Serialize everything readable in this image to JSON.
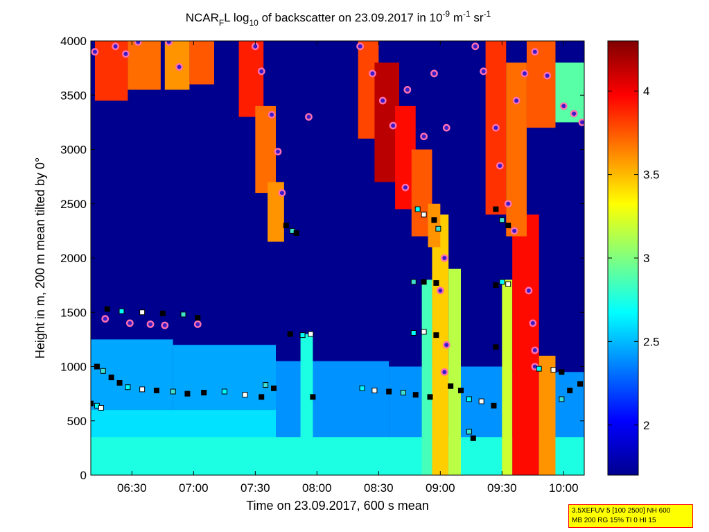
{
  "chart_data": {
    "type": "heatmap",
    "title": {
      "prefix": "NCAR",
      "sub1": "F",
      "mid1": "L log",
      "sub2": "10",
      "mid2": " of backscatter on 23.09.2017 in 10",
      "sup1": "-9",
      "mid3": " m",
      "sup2": "-1",
      "mid4": " sr",
      "sup3": "-1"
    },
    "xlabel": "Time on 23.09.2017, 600 s mean",
    "ylabel": "Height in m, 200 m mean tilted by 0°",
    "xlim": [
      "06:10",
      "10:10"
    ],
    "ylim": [
      0,
      4000
    ],
    "x_ticks": [
      "06:30",
      "07:00",
      "07:30",
      "08:00",
      "08:30",
      "09:00",
      "09:30",
      "10:00"
    ],
    "y_ticks": [
      0,
      500,
      1000,
      1500,
      2000,
      2500,
      3000,
      3500,
      4000
    ],
    "colorbar": {
      "range": [
        1.7,
        4.3
      ],
      "ticks": [
        "2",
        "2.5",
        "3",
        "3.5",
        "4"
      ],
      "colormap": "jet"
    },
    "bands": [
      {
        "x0": "06:10",
        "x1": "06:50",
        "y0": 0,
        "y1": 1250,
        "value": 2.45
      },
      {
        "x0": "06:50",
        "x1": "07:40",
        "y0": 0,
        "y1": 1200,
        "value": 2.45
      },
      {
        "x0": "07:40",
        "x1": "08:35",
        "y0": 0,
        "y1": 1050,
        "value": 2.4
      },
      {
        "x0": "08:35",
        "x1": "09:35",
        "y0": 0,
        "y1": 1000,
        "value": 2.4
      },
      {
        "x0": "09:35",
        "x1": "10:10",
        "y0": 0,
        "y1": 950,
        "value": 2.4
      },
      {
        "x0": "06:10",
        "x1": "07:40",
        "y0": 0,
        "y1": 600,
        "value": 2.6
      },
      {
        "x0": "06:10",
        "x1": "10:10",
        "y0": 0,
        "y1": 350,
        "value": 2.75
      },
      {
        "x0": "07:52",
        "x1": "07:58",
        "y0": 0,
        "y1": 1300,
        "value": 2.75
      },
      {
        "x0": "08:51",
        "x1": "08:56",
        "y0": 0,
        "y1": 1800,
        "value": 2.85
      },
      {
        "x0": "08:56",
        "x1": "09:04",
        "y0": 0,
        "y1": 2400,
        "value": 3.45
      },
      {
        "x0": "09:04",
        "x1": "09:10",
        "y0": 0,
        "y1": 1900,
        "value": 3.15
      },
      {
        "x0": "09:30",
        "x1": "09:35",
        "y0": 0,
        "y1": 1800,
        "value": 3.2
      },
      {
        "x0": "09:35",
        "x1": "09:48",
        "y0": 0,
        "y1": 2400,
        "value": 3.95
      },
      {
        "x0": "09:48",
        "x1": "09:56",
        "y0": 0,
        "y1": 1100,
        "value": 3.6
      },
      {
        "x0": "06:12",
        "x1": "06:28",
        "y0": 3450,
        "y1": 4000,
        "value": 3.85
      },
      {
        "x0": "06:28",
        "x1": "06:44",
        "y0": 3550,
        "y1": 4000,
        "value": 3.7
      },
      {
        "x0": "06:46",
        "x1": "06:58",
        "y0": 3550,
        "y1": 4000,
        "value": 3.6
      },
      {
        "x0": "06:58",
        "x1": "07:10",
        "y0": 3600,
        "y1": 4000,
        "value": 3.75
      },
      {
        "x0": "07:22",
        "x1": "07:34",
        "y0": 3300,
        "y1": 4000,
        "value": 3.9
      },
      {
        "x0": "07:30",
        "x1": "07:40",
        "y0": 2600,
        "y1": 3400,
        "value": 3.7
      },
      {
        "x0": "07:36",
        "x1": "07:44",
        "y0": 2150,
        "y1": 2700,
        "value": 3.6
      },
      {
        "x0": "08:20",
        "x1": "08:30",
        "y0": 3100,
        "y1": 4000,
        "value": 3.8
      },
      {
        "x0": "08:28",
        "x1": "08:40",
        "y0": 2700,
        "y1": 3800,
        "value": 4.15
      },
      {
        "x0": "08:38",
        "x1": "08:48",
        "y0": 2450,
        "y1": 3400,
        "value": 3.95
      },
      {
        "x0": "08:46",
        "x1": "08:56",
        "y0": 2200,
        "y1": 3000,
        "value": 3.75
      },
      {
        "x0": "08:54",
        "x1": "09:00",
        "y0": 2100,
        "y1": 2500,
        "value": 3.6
      },
      {
        "x0": "09:22",
        "x1": "09:32",
        "y0": 2400,
        "y1": 4000,
        "value": 3.85
      },
      {
        "x0": "09:32",
        "x1": "09:42",
        "y0": 2200,
        "y1": 3800,
        "value": 3.7
      },
      {
        "x0": "09:42",
        "x1": "09:56",
        "y0": 3200,
        "y1": 4000,
        "value": 3.75
      },
      {
        "x0": "09:56",
        "x1": "10:10",
        "y0": 3250,
        "y1": 3800,
        "value": 2.9
      }
    ],
    "series": [
      {
        "marker": "circle",
        "points": [
          [
            "06:12",
            3900
          ],
          [
            "06:22",
            3950
          ],
          [
            "06:27",
            3880
          ],
          [
            "06:33",
            3990
          ],
          [
            "06:48",
            3990
          ],
          [
            "06:53",
            3760
          ],
          [
            "07:30",
            3950
          ],
          [
            "07:33",
            3720
          ],
          [
            "07:38",
            3320
          ],
          [
            "07:41",
            2980
          ],
          [
            "07:43",
            2600
          ],
          [
            "07:56",
            3300
          ],
          [
            "08:21",
            3950
          ],
          [
            "08:27",
            3700
          ],
          [
            "08:32",
            3450
          ],
          [
            "08:37",
            3220
          ],
          [
            "08:44",
            3550
          ],
          [
            "08:52",
            3120
          ],
          [
            "08:57",
            3700
          ],
          [
            "08:43",
            2650
          ],
          [
            "09:03",
            3200
          ],
          [
            "09:17",
            3950
          ],
          [
            "09:21",
            3720
          ],
          [
            "09:27",
            3200
          ],
          [
            "09:29",
            2850
          ],
          [
            "09:33",
            2500
          ],
          [
            "09:37",
            3450
          ],
          [
            "09:41",
            3700
          ],
          [
            "09:46",
            3900
          ],
          [
            "09:52",
            3680
          ],
          [
            "10:00",
            3400
          ],
          [
            "10:05",
            3330
          ],
          [
            "10:09",
            3250
          ],
          [
            "06:17",
            1440
          ],
          [
            "06:29",
            1400
          ],
          [
            "06:39",
            1390
          ],
          [
            "06:46",
            1380
          ],
          [
            "07:02",
            1390
          ],
          [
            "09:02",
            2000
          ],
          [
            "09:00",
            1700
          ],
          [
            "09:03",
            1200
          ],
          [
            "09:02",
            950
          ],
          [
            "09:36",
            2250
          ],
          [
            "09:43",
            1700
          ],
          [
            "09:45",
            1400
          ],
          [
            "09:46",
            1150
          ],
          [
            "09:46",
            1000
          ]
        ]
      },
      {
        "marker": "square",
        "points": [
          [
            "06:10",
            660
          ],
          [
            "06:13",
            640
          ],
          [
            "06:15",
            620
          ],
          [
            "06:13",
            1000
          ],
          [
            "06:16",
            960
          ],
          [
            "06:20",
            900
          ],
          [
            "06:24",
            850
          ],
          [
            "06:28",
            810
          ],
          [
            "06:35",
            790
          ],
          [
            "06:42",
            780
          ],
          [
            "06:50",
            770
          ],
          [
            "06:57",
            750
          ],
          [
            "07:05",
            760
          ],
          [
            "07:15",
            770
          ],
          [
            "07:25",
            740
          ],
          [
            "07:33",
            720
          ],
          [
            "07:35",
            830
          ],
          [
            "07:39",
            800
          ],
          [
            "06:18",
            1530
          ],
          [
            "06:25",
            1510
          ],
          [
            "06:35",
            1500
          ],
          [
            "06:45",
            1490
          ],
          [
            "06:55",
            1480
          ],
          [
            "07:02",
            1450
          ],
          [
            "07:47",
            1300
          ],
          [
            "07:53",
            1290
          ],
          [
            "07:57",
            1300
          ],
          [
            "07:45",
            2300
          ],
          [
            "07:48",
            2250
          ],
          [
            "07:50",
            2230
          ],
          [
            "07:58",
            720
          ],
          [
            "08:22",
            800
          ],
          [
            "08:28",
            780
          ],
          [
            "08:35",
            770
          ],
          [
            "08:42",
            760
          ],
          [
            "08:48",
            740
          ],
          [
            "08:55",
            720
          ],
          [
            "08:47",
            1310
          ],
          [
            "08:52",
            1320
          ],
          [
            "08:58",
            1290
          ],
          [
            "08:47",
            1780
          ],
          [
            "08:52",
            1780
          ],
          [
            "08:58",
            1770
          ],
          [
            "08:49",
            2450
          ],
          [
            "08:52",
            2400
          ],
          [
            "08:57",
            2350
          ],
          [
            "08:59",
            2270
          ],
          [
            "09:05",
            820
          ],
          [
            "09:10",
            780
          ],
          [
            "09:14",
            700
          ],
          [
            "09:20",
            680
          ],
          [
            "09:26",
            640
          ],
          [
            "09:14",
            400
          ],
          [
            "09:16",
            340
          ],
          [
            "09:27",
            1750
          ],
          [
            "09:30",
            1780
          ],
          [
            "09:33",
            1760
          ],
          [
            "09:27",
            2450
          ],
          [
            "09:30",
            2350
          ],
          [
            "09:33",
            2300
          ],
          [
            "09:27",
            1180
          ],
          [
            "09:48",
            980
          ],
          [
            "09:55",
            970
          ],
          [
            "09:59",
            950
          ],
          [
            "09:59",
            700
          ],
          [
            "10:03",
            780
          ],
          [
            "10:08",
            840
          ]
        ]
      }
    ]
  },
  "info_box": {
    "line1": "3.5XEFUV 5 [100 2500] NH 600",
    "line2": "MB 200 RG 15% TI 0 HI 15",
    "border_color": "#ff0000",
    "background": "#ffff00"
  }
}
